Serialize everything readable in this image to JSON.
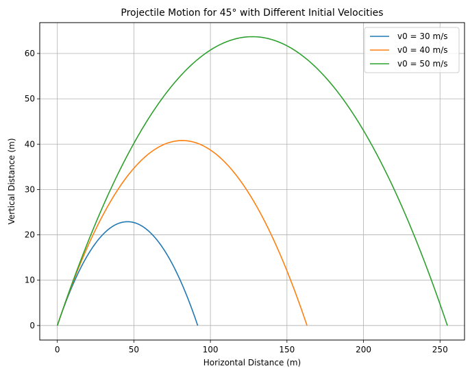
{
  "chart_data": {
    "type": "line",
    "title": "Projectile Motion for 45° with Different Initial Velocities",
    "xlabel": "Horizontal Distance (m)",
    "ylabel": "Vertical Distance (m)",
    "xlim": [
      -11.5,
      266
    ],
    "ylim": [
      -3.2,
      66.8
    ],
    "xticks": [
      0,
      50,
      100,
      150,
      200,
      250
    ],
    "yticks": [
      0,
      10,
      20,
      30,
      40,
      50,
      60
    ],
    "grid": true,
    "legend": "top-right",
    "series": [
      {
        "name": "v0 = 30 m/s",
        "color": "#1f77b4",
        "range": 91.7,
        "max_height": 22.9
      },
      {
        "name": "v0 = 40 m/s",
        "color": "#ff7f0e",
        "range": 163.1,
        "max_height": 40.8
      },
      {
        "name": "v0 = 50 m/s",
        "color": "#2ca02c",
        "range": 254.8,
        "max_height": 63.7
      }
    ]
  }
}
